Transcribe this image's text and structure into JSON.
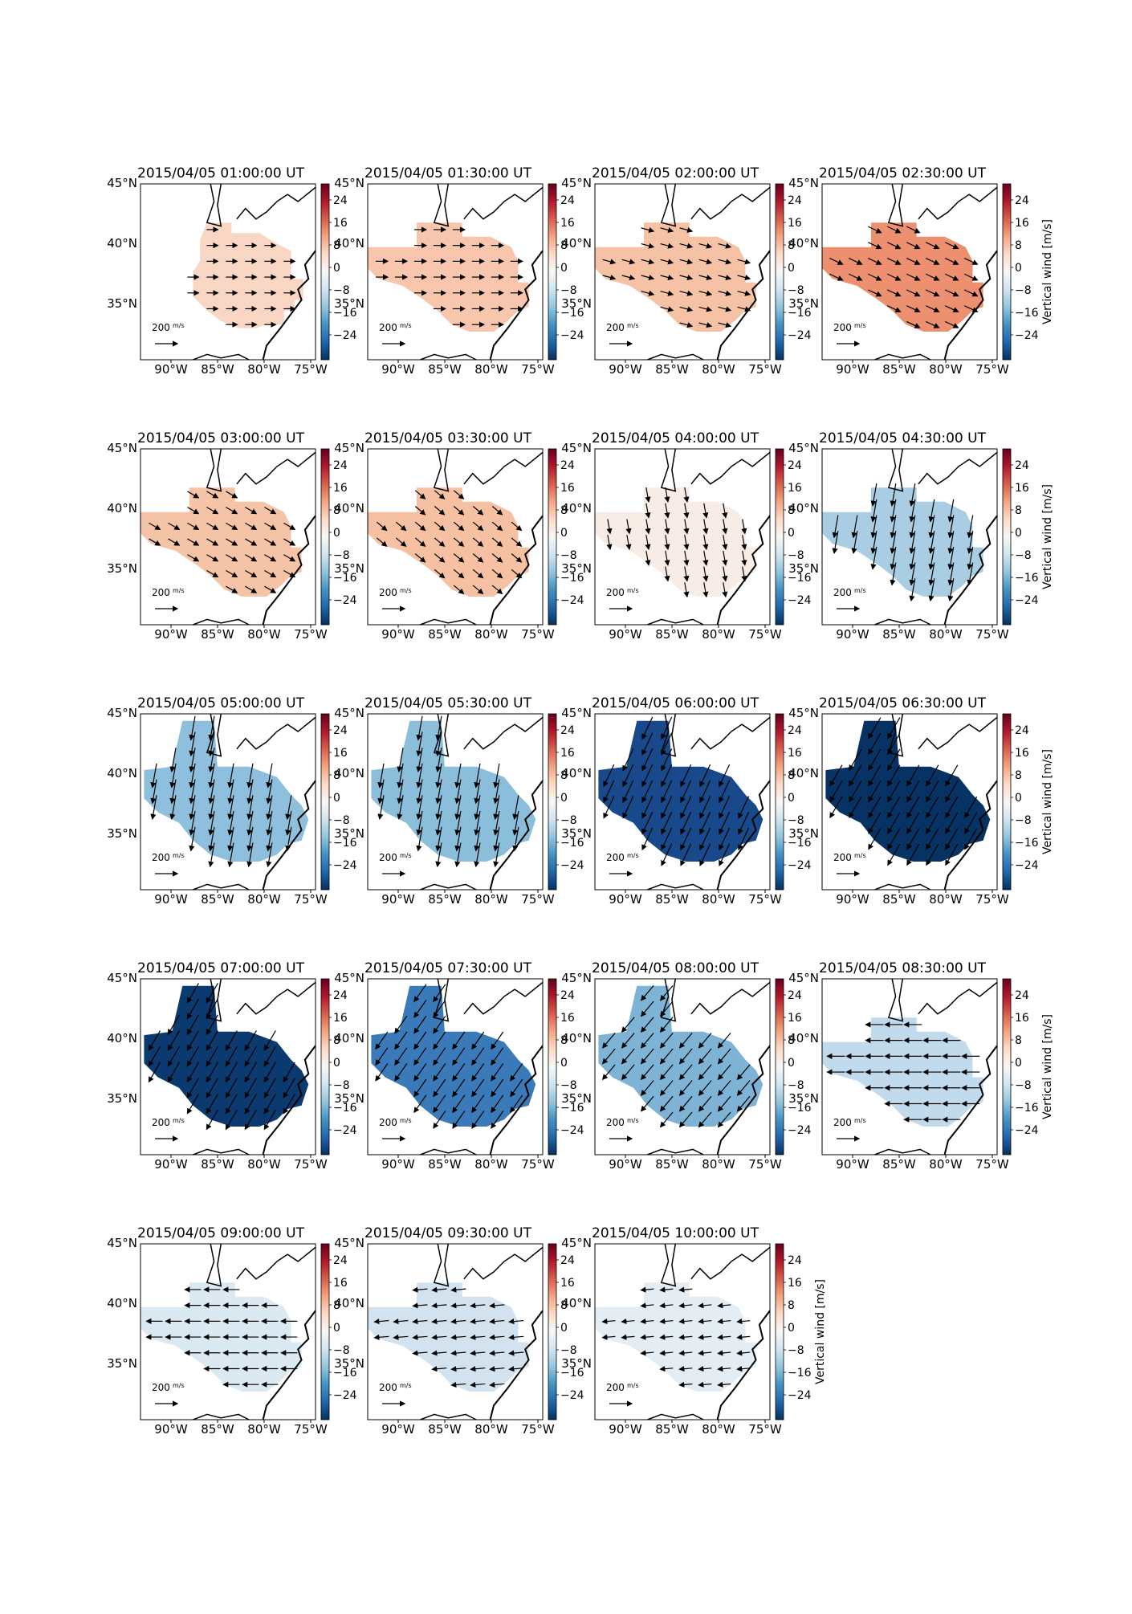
{
  "figure": {
    "panels": [
      {
        "title": "2015/04/05 01:00:00 UT",
        "vertical_wind": 6,
        "fill": "#f9d7c4"
      },
      {
        "title": "2015/04/05 01:30:00 UT",
        "vertical_wind": 8,
        "fill": "#f7c6ac"
      },
      {
        "title": "2015/04/05 02:00:00 UT",
        "vertical_wind": 8,
        "fill": "#f6c2a6"
      },
      {
        "title": "2015/04/05 02:30:00 UT",
        "vertical_wind": 13,
        "fill": "#ec906f"
      },
      {
        "title": "2015/04/05 03:00:00 UT",
        "vertical_wind": 8,
        "fill": "#f5c3a6"
      },
      {
        "title": "2015/04/05 03:30:00 UT",
        "vertical_wind": 8,
        "fill": "#f6c1a3"
      },
      {
        "title": "2015/04/05 04:00:00 UT",
        "vertical_wind": 2,
        "fill": "#f8ece6"
      },
      {
        "title": "2015/04/05 04:30:00 UT",
        "vertical_wind": -7,
        "fill": "#a9cee4"
      },
      {
        "title": "2015/04/05 05:00:00 UT",
        "vertical_wind": -9,
        "fill": "#8ebfdc"
      },
      {
        "title": "2015/04/05 05:30:00 UT",
        "vertical_wind": -9,
        "fill": "#8bbedb"
      },
      {
        "title": "2015/04/05 06:00:00 UT",
        "vertical_wind": -24,
        "fill": "#18498a"
      },
      {
        "title": "2015/04/05 06:30:00 UT",
        "vertical_wind": -28,
        "fill": "#063264"
      },
      {
        "title": "2015/04/05 07:00:00 UT",
        "vertical_wind": -27,
        "fill": "#0b3a70"
      },
      {
        "title": "2015/04/05 07:30:00 UT",
        "vertical_wind": -18,
        "fill": "#3a7ab8"
      },
      {
        "title": "2015/04/05 08:00:00 UT",
        "vertical_wind": -12,
        "fill": "#7eb3d6"
      },
      {
        "title": "2015/04/05 08:30:00 UT",
        "vertical_wind": -6,
        "fill": "#c1dbec"
      },
      {
        "title": "2015/04/05 09:00:00 UT",
        "vertical_wind": -4,
        "fill": "#dae9f2"
      },
      {
        "title": "2015/04/05 09:30:00 UT",
        "vertical_wind": -3,
        "fill": "#d2e3ef"
      },
      {
        "title": "2015/04/05 10:00:00 UT",
        "vertical_wind": -2,
        "fill": "#e4edf4"
      }
    ],
    "lon_ticks": [
      "90°W",
      "85°W",
      "80°W",
      "75°W"
    ],
    "lat_ticks": [
      "45°N",
      "40°N",
      "35°N"
    ],
    "colorbar": {
      "ticks": [
        "24",
        "16",
        "8",
        "0",
        "−8",
        "−16",
        "−24"
      ],
      "label": "Vertical wind [m/s]",
      "range": [
        -30,
        30
      ],
      "stops": [
        "#67001f",
        "#b2182b",
        "#d6604d",
        "#f4a582",
        "#fddbc7",
        "#f7f7f7",
        "#d1e5f0",
        "#92c5de",
        "#4393c3",
        "#2166ac",
        "#053061"
      ]
    },
    "reference_arrow": {
      "label": "200",
      "unit": "m/s"
    }
  }
}
